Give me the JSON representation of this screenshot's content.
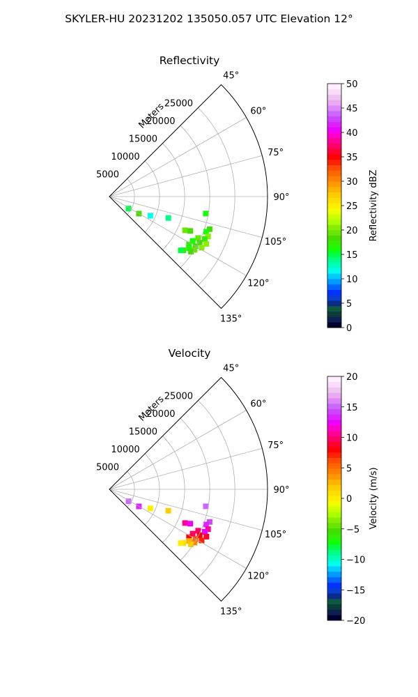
{
  "figure": {
    "suptitle": "SKYLER-HU  20231202  135050.057 UTC Elevation 12°"
  },
  "chart_data": [
    {
      "type": "radar-ppi-sector",
      "title": "Reflectivity",
      "radial_label": "Meters",
      "azimuth_range_deg": [
        45,
        135
      ],
      "range_max_m": 31500,
      "azimuth_ticks": [
        "45°",
        "60°",
        "75°",
        "90°",
        "105°",
        "120°",
        "135°"
      ],
      "range_ticks": [
        "5000",
        "10000",
        "15000",
        "20000",
        "25000"
      ],
      "grid": true,
      "colorbar": {
        "label": "Reflectivity dBZ",
        "min": 0,
        "max": 50,
        "ticks": [
          "0",
          "5",
          "10",
          "15",
          "20",
          "25",
          "30",
          "35",
          "40",
          "45",
          "50"
        ],
        "colormap": "pyart_HomeyerRainbow",
        "colors": [
          "#02002e",
          "#0b2050",
          "#0d3b3a",
          "#0c5a3f",
          "#0a2a8c",
          "#0a3ed0",
          "#0033ff",
          "#0066ff",
          "#0099ff",
          "#00ccff",
          "#00ffee",
          "#00ffbb",
          "#00ff88",
          "#00ff44",
          "#11ff00",
          "#33ee00",
          "#44dd00",
          "#66e600",
          "#88ee00",
          "#aaff00",
          "#ccff00",
          "#eeff00",
          "#ffee00",
          "#ffdd00",
          "#ffcc00",
          "#ffb300",
          "#ff9900",
          "#ff8000",
          "#ff6600",
          "#ff4d00",
          "#ff2200",
          "#ff0000",
          "#ff0033",
          "#ff0066",
          "#ff0099",
          "#ff00cc",
          "#ee00ff",
          "#dd22ff",
          "#cc44ff",
          "#cc66ff",
          "#dd88ff",
          "#e8aaf0",
          "#f0c4f0",
          "#f8dcf8",
          "#ffeeff"
        ]
      },
      "echoes": [
        {
          "az": 108,
          "r_m": 21000,
          "value_dbz": 18
        },
        {
          "az": 110,
          "r_m": 20500,
          "value_dbz": 16
        },
        {
          "az": 112,
          "r_m": 21200,
          "value_dbz": 20
        },
        {
          "az": 114,
          "r_m": 20800,
          "value_dbz": 17
        },
        {
          "az": 115,
          "r_m": 19500,
          "value_dbz": 19
        },
        {
          "az": 116,
          "r_m": 21500,
          "value_dbz": 21
        },
        {
          "az": 117,
          "r_m": 20200,
          "value_dbz": 18
        },
        {
          "az": 118,
          "r_m": 18800,
          "value_dbz": 16
        },
        {
          "az": 119,
          "r_m": 21000,
          "value_dbz": 20
        },
        {
          "az": 120,
          "r_m": 19800,
          "value_dbz": 18
        },
        {
          "az": 121,
          "r_m": 18500,
          "value_dbz": 17
        },
        {
          "az": 122,
          "r_m": 20000,
          "value_dbz": 19
        },
        {
          "az": 123,
          "r_m": 18900,
          "value_dbz": 16
        },
        {
          "az": 124,
          "r_m": 19600,
          "value_dbz": 18
        },
        {
          "az": 126,
          "r_m": 18200,
          "value_dbz": 17
        },
        {
          "az": 127,
          "r_m": 17800,
          "value_dbz": 15
        },
        {
          "az": 114,
          "r_m": 16500,
          "value_dbz": 19
        },
        {
          "az": 113,
          "r_m": 17500,
          "value_dbz": 18
        },
        {
          "az": 100,
          "r_m": 19500,
          "value_dbz": 16
        },
        {
          "az": 110,
          "r_m": 12500,
          "value_dbz": 14
        },
        {
          "az": 115,
          "r_m": 9000,
          "value_dbz": 12
        },
        {
          "az": 120,
          "r_m": 6800,
          "value_dbz": 18
        },
        {
          "az": 122,
          "r_m": 4500,
          "value_dbz": 15
        }
      ]
    },
    {
      "type": "radar-ppi-sector",
      "title": "Velocity",
      "radial_label": "Meters",
      "azimuth_range_deg": [
        45,
        135
      ],
      "range_max_m": 31500,
      "azimuth_ticks": [
        "45°",
        "60°",
        "75°",
        "90°",
        "105°",
        "120°",
        "135°"
      ],
      "range_ticks": [
        "5000",
        "10000",
        "15000",
        "20000",
        "25000"
      ],
      "grid": true,
      "colorbar": {
        "label": "Velocity (m/s)",
        "min": -20,
        "max": 20,
        "ticks": [
          "−20",
          "−15",
          "−10",
          "−5",
          "0",
          "5",
          "10",
          "15",
          "20"
        ],
        "colormap": "pyart_BuDRd18",
        "colors": [
          "#02002e",
          "#0b2050",
          "#0d3b3a",
          "#0c5a3f",
          "#0a2a8c",
          "#0a3ed0",
          "#0033ff",
          "#0066ff",
          "#0099ff",
          "#00ccff",
          "#00ffee",
          "#00ffbb",
          "#00ff88",
          "#00ff44",
          "#11ff00",
          "#33ee00",
          "#44dd00",
          "#66e600",
          "#88ee00",
          "#aaff00",
          "#ccff00",
          "#eeff00",
          "#ffee00",
          "#ffdd00",
          "#ffcc00",
          "#ffb300",
          "#ff9900",
          "#ff8000",
          "#ff6600",
          "#ff4d00",
          "#ff2200",
          "#ff0000",
          "#ff0033",
          "#ff0066",
          "#ff0099",
          "#ff00cc",
          "#ee00ff",
          "#dd22ff",
          "#cc44ff",
          "#cc66ff",
          "#dd88ff",
          "#e8aaf0",
          "#f0c4f0",
          "#f8dcf8",
          "#ffeeff"
        ]
      },
      "echoes": [
        {
          "az": 108,
          "r_m": 21000,
          "value_ms": 14
        },
        {
          "az": 110,
          "r_m": 20500,
          "value_ms": 13
        },
        {
          "az": 112,
          "r_m": 21200,
          "value_ms": 11
        },
        {
          "az": 114,
          "r_m": 20800,
          "value_ms": 12
        },
        {
          "az": 115,
          "r_m": 19500,
          "value_ms": 10
        },
        {
          "az": 116,
          "r_m": 21500,
          "value_ms": 9
        },
        {
          "az": 117,
          "r_m": 20200,
          "value_ms": 8
        },
        {
          "az": 118,
          "r_m": 18800,
          "value_ms": 10
        },
        {
          "az": 119,
          "r_m": 21000,
          "value_ms": 7
        },
        {
          "az": 120,
          "r_m": 19800,
          "value_ms": 6
        },
        {
          "az": 121,
          "r_m": 18500,
          "value_ms": 8
        },
        {
          "az": 122,
          "r_m": 20000,
          "value_ms": 4
        },
        {
          "az": 123,
          "r_m": 18900,
          "value_ms": 3
        },
        {
          "az": 124,
          "r_m": 19600,
          "value_ms": 2
        },
        {
          "az": 126,
          "r_m": 18200,
          "value_ms": 1
        },
        {
          "az": 127,
          "r_m": 17800,
          "value_ms": 0
        },
        {
          "az": 114,
          "r_m": 16500,
          "value_ms": 11
        },
        {
          "az": 113,
          "r_m": 17500,
          "value_ms": 12
        },
        {
          "az": 100,
          "r_m": 19500,
          "value_ms": 15
        },
        {
          "az": 110,
          "r_m": 12500,
          "value_ms": 2
        },
        {
          "az": 115,
          "r_m": 9000,
          "value_ms": 0
        },
        {
          "az": 120,
          "r_m": 6800,
          "value_ms": 13
        },
        {
          "az": 122,
          "r_m": 4500,
          "value_ms": 15
        }
      ]
    }
  ]
}
